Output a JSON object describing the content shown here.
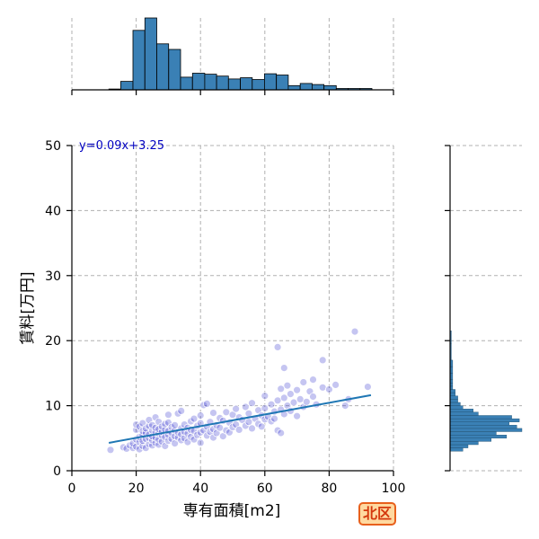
{
  "chart_data": {
    "type": "scatter",
    "xlabel": "専有面積[m2]",
    "ylabel": "賃料[万円]",
    "xlim": [
      0,
      100
    ],
    "ylim": [
      0,
      50
    ],
    "x_ticks": [
      0,
      20,
      40,
      60,
      80,
      100
    ],
    "y_ticks": [
      0,
      10,
      20,
      30,
      40,
      50
    ],
    "grid": true,
    "regression": {
      "equation": "y=0.09x+3.25",
      "slope": 0.09,
      "intercept": 3.25,
      "x_range": [
        11.5,
        93
      ],
      "color": "#1f77b4"
    },
    "badge": "北区",
    "point_color": "#3f3fcf",
    "hist_color": "#3a80b5",
    "points": [
      [
        12,
        3.2
      ],
      [
        16,
        3.6
      ],
      [
        17,
        3.4
      ],
      [
        18,
        3.9
      ],
      [
        19,
        3.5
      ],
      [
        19,
        4.2
      ],
      [
        20,
        3.7
      ],
      [
        20,
        4.8
      ],
      [
        20,
        6.3
      ],
      [
        20,
        7.1
      ],
      [
        21,
        3.3
      ],
      [
        21,
        4.4
      ],
      [
        21,
        5.2
      ],
      [
        21,
        6.8
      ],
      [
        22,
        3.8
      ],
      [
        22,
        4.6
      ],
      [
        22,
        5.5
      ],
      [
        22,
        6.1
      ],
      [
        22,
        7.3
      ],
      [
        23,
        3.5
      ],
      [
        23,
        4.9
      ],
      [
        23,
        5.8
      ],
      [
        23,
        6.5
      ],
      [
        24,
        4.1
      ],
      [
        24,
        5.0
      ],
      [
        24,
        5.6
      ],
      [
        24,
        6.9
      ],
      [
        24,
        7.8
      ],
      [
        25,
        3.9
      ],
      [
        25,
        4.7
      ],
      [
        25,
        5.3
      ],
      [
        25,
        6.2
      ],
      [
        25,
        7.0
      ],
      [
        26,
        4.3
      ],
      [
        26,
        5.1
      ],
      [
        26,
        5.9
      ],
      [
        26,
        6.6
      ],
      [
        26,
        8.2
      ],
      [
        27,
        4.0
      ],
      [
        27,
        4.8
      ],
      [
        27,
        5.7
      ],
      [
        27,
        6.4
      ],
      [
        27,
        7.5
      ],
      [
        28,
        4.5
      ],
      [
        28,
        5.4
      ],
      [
        28,
        6.0
      ],
      [
        28,
        6.8
      ],
      [
        29,
        3.8
      ],
      [
        29,
        5.2
      ],
      [
        29,
        6.3
      ],
      [
        29,
        7.2
      ],
      [
        30,
        4.6
      ],
      [
        30,
        5.5
      ],
      [
        30,
        6.1
      ],
      [
        30,
        7.4
      ],
      [
        30,
        8.6
      ],
      [
        31,
        4.9
      ],
      [
        31,
        5.8
      ],
      [
        31,
        6.7
      ],
      [
        32,
        4.2
      ],
      [
        32,
        5.3
      ],
      [
        32,
        6.2
      ],
      [
        32,
        7.0
      ],
      [
        33,
        5.1
      ],
      [
        33,
        5.9
      ],
      [
        33,
        8.8
      ],
      [
        34,
        4.7
      ],
      [
        34,
        5.6
      ],
      [
        34,
        6.5
      ],
      [
        34,
        9.2
      ],
      [
        35,
        5.0
      ],
      [
        35,
        6.0
      ],
      [
        35,
        7.1
      ],
      [
        36,
        4.4
      ],
      [
        36,
        5.7
      ],
      [
        36,
        6.6
      ],
      [
        37,
        5.2
      ],
      [
        37,
        6.3
      ],
      [
        37,
        7.6
      ],
      [
        38,
        4.8
      ],
      [
        38,
        6.1
      ],
      [
        38,
        8.0
      ],
      [
        39,
        5.5
      ],
      [
        39,
        6.9
      ],
      [
        40,
        4.3
      ],
      [
        40,
        5.9
      ],
      [
        40,
        7.3
      ],
      [
        40,
        8.5
      ],
      [
        41,
        6.2
      ],
      [
        41,
        10.1
      ],
      [
        42,
        5.4
      ],
      [
        42,
        6.8
      ],
      [
        42,
        10.3
      ],
      [
        43,
        6.0
      ],
      [
        43,
        7.5
      ],
      [
        44,
        5.1
      ],
      [
        44,
        6.4
      ],
      [
        44,
        8.9
      ],
      [
        45,
        5.8
      ],
      [
        45,
        7.0
      ],
      [
        46,
        6.6
      ],
      [
        46,
        8.1
      ],
      [
        47,
        5.3
      ],
      [
        47,
        7.7
      ],
      [
        48,
        6.2
      ],
      [
        48,
        9.0
      ],
      [
        49,
        5.9
      ],
      [
        49,
        7.4
      ],
      [
        50,
        6.7
      ],
      [
        50,
        8.6
      ],
      [
        51,
        7.1
      ],
      [
        51,
        9.5
      ],
      [
        52,
        6.3
      ],
      [
        52,
        8.2
      ],
      [
        53,
        7.8
      ],
      [
        54,
        6.9
      ],
      [
        54,
        9.8
      ],
      [
        55,
        7.5
      ],
      [
        55,
        8.8
      ],
      [
        56,
        6.5
      ],
      [
        56,
        10.4
      ],
      [
        57,
        8.0
      ],
      [
        58,
        7.2
      ],
      [
        58,
        9.3
      ],
      [
        59,
        8.5
      ],
      [
        59,
        6.8
      ],
      [
        60,
        7.9
      ],
      [
        60,
        9.6
      ],
      [
        60,
        11.5
      ],
      [
        61,
        8.3
      ],
      [
        62,
        7.6
      ],
      [
        62,
        10.2
      ],
      [
        63,
        9.1
      ],
      [
        63,
        8.0
      ],
      [
        64,
        6.2
      ],
      [
        64,
        10.8
      ],
      [
        64,
        19.0
      ],
      [
        65,
        9.4
      ],
      [
        65,
        12.6
      ],
      [
        65,
        5.8
      ],
      [
        66,
        15.8
      ],
      [
        66,
        8.7
      ],
      [
        66,
        11.2
      ],
      [
        67,
        10.0
      ],
      [
        67,
        13.1
      ],
      [
        68,
        9.2
      ],
      [
        68,
        11.8
      ],
      [
        69,
        10.5
      ],
      [
        70,
        8.4
      ],
      [
        70,
        12.4
      ],
      [
        71,
        11.0
      ],
      [
        72,
        9.8
      ],
      [
        72,
        13.6
      ],
      [
        73,
        10.6
      ],
      [
        74,
        12.2
      ],
      [
        75,
        11.4
      ],
      [
        75,
        14.0
      ],
      [
        76,
        10.2
      ],
      [
        78,
        12.8
      ],
      [
        78,
        17.0
      ],
      [
        80,
        12.5
      ],
      [
        82,
        13.2
      ],
      [
        85,
        10.0
      ],
      [
        86,
        11.0
      ],
      [
        88,
        21.4
      ],
      [
        92,
        12.9
      ]
    ],
    "hist_x": {
      "bin_edges": [
        11.5,
        15.2,
        19,
        22.7,
        26.4,
        30.1,
        33.8,
        37.5,
        41.3,
        45,
        48.7,
        52.4,
        56.1,
        59.9,
        63.6,
        67.3,
        71,
        74.7,
        78.4,
        82.2,
        85.9,
        89.6,
        93.3
      ],
      "counts": [
        0.3,
        3.2,
        22.5,
        27.2,
        17.4,
        15.3,
        4.8,
        6.3,
        5.9,
        5.2,
        4.1,
        4.6,
        3.9,
        6.1,
        5.6,
        1.6,
        2.4,
        2.0,
        1.6,
        0.5,
        0.5,
        0.5
      ]
    },
    "hist_y": {
      "bin_edges": [
        3,
        3.5,
        4,
        4.5,
        5,
        5.5,
        6,
        6.5,
        7,
        7.5,
        8,
        8.5,
        9,
        9.5,
        10,
        10.5,
        11,
        11.5,
        12,
        12.5,
        13,
        13.5,
        14,
        15,
        16,
        17,
        19.5,
        21.5
      ],
      "counts": [
        5,
        7,
        11,
        16,
        22,
        18,
        28,
        26,
        23,
        27,
        24,
        11,
        9,
        5,
        4,
        3,
        3,
        2,
        2,
        1,
        1,
        1,
        1,
        1,
        1,
        0.5,
        0.5
      ]
    }
  }
}
